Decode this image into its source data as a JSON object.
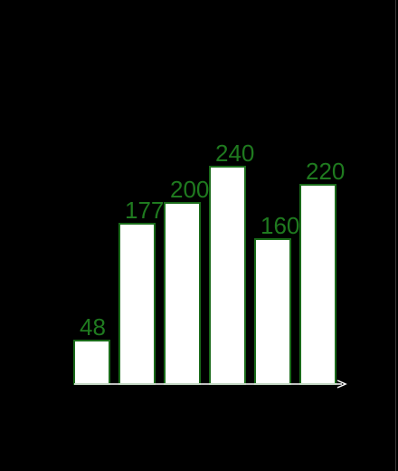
{
  "colors": {
    "background": "#000000",
    "bar_fill": "#ffffff",
    "bar_stroke": "#1a6b1a",
    "label": "#1f7a1f",
    "axis": "#ffffff"
  },
  "chart_data": {
    "type": "bar",
    "categories": [
      "",
      "",
      "",
      "",
      "",
      ""
    ],
    "values": [
      48,
      177,
      200,
      240,
      160,
      220
    ],
    "value_labels": [
      "48",
      "177",
      "200",
      "240",
      "160",
      "220"
    ],
    "title": "",
    "xlabel": "",
    "ylabel": "",
    "ylim": [
      0,
      240
    ],
    "grid": false,
    "legend": "none",
    "x_axis_arrow": true
  }
}
